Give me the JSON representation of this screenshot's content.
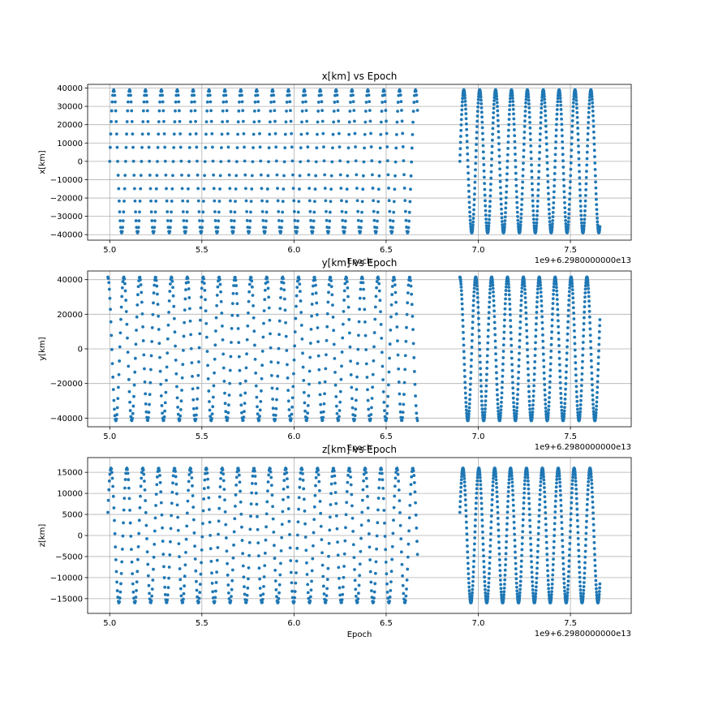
{
  "figure": {
    "background": "#ffffff",
    "marker_color": "#1f77b4",
    "grid": true
  },
  "chart_data": [
    {
      "type": "scatter",
      "title": "x[km] vs Epoch",
      "xlabel": "Epoch",
      "ylabel": "x[km]",
      "x_offset_label": "1e9+6.2980000000e13",
      "xlim": [
        4.88,
        7.83
      ],
      "ylim": [
        -43000,
        42000
      ],
      "x_ticks": [
        5.0,
        5.5,
        6.0,
        6.5,
        7.0,
        7.5
      ],
      "x_tick_labels": [
        "5.0",
        "5.5",
        "6.0",
        "6.5",
        "7.0",
        "7.5"
      ],
      "y_ticks": [
        -40000,
        -30000,
        -20000,
        -10000,
        0,
        10000,
        20000,
        30000,
        40000
      ],
      "y_tick_labels": [
        "−40000",
        "−30000",
        "−20000",
        "−10000",
        "0",
        "10000",
        "20000",
        "30000",
        "40000"
      ],
      "series": [
        {
          "segments": [
            [
              5.0,
              6.67
            ],
            [
              6.9,
              7.66
            ]
          ],
          "amplitude": 39000,
          "period": 0.0862,
          "phase": 0.0,
          "waveform": "sine",
          "samples_per_segment": 620
        }
      ]
    },
    {
      "type": "scatter",
      "title": "y[km] vs Epoch",
      "xlabel": "Epoch",
      "ylabel": "y[km]",
      "x_offset_label": "1e9+6.2980000000e13",
      "xlim": [
        4.88,
        7.83
      ],
      "ylim": [
        -45000,
        45000
      ],
      "x_ticks": [
        5.0,
        5.5,
        6.0,
        6.5,
        7.0,
        7.5
      ],
      "x_tick_labels": [
        "5.0",
        "5.5",
        "6.0",
        "6.5",
        "7.0",
        "7.5"
      ],
      "y_ticks": [
        -40000,
        -20000,
        0,
        20000,
        40000
      ],
      "y_tick_labels": [
        "−40000",
        "−20000",
        "0",
        "20000",
        "40000"
      ],
      "series": [
        {
          "segments": [
            [
              4.99,
              6.67
            ],
            [
              6.9,
              7.66
            ]
          ],
          "amplitude": 41500,
          "period": 0.0862,
          "phase": 1.5708,
          "waveform": "sine",
          "samples_per_segment": 620
        }
      ]
    },
    {
      "type": "scatter",
      "title": "z[km] vs Epoch",
      "xlabel": "Epoch",
      "ylabel": "z[km]",
      "x_offset_label": "1e9+6.2980000000e13",
      "xlim": [
        4.88,
        7.83
      ],
      "ylim": [
        -18500,
        18500
      ],
      "x_ticks": [
        5.0,
        5.5,
        6.0,
        6.5,
        7.0,
        7.5
      ],
      "x_tick_labels": [
        "5.0",
        "5.5",
        "6.0",
        "6.5",
        "7.0",
        "7.5"
      ],
      "y_ticks": [
        -15000,
        -10000,
        -5000,
        0,
        5000,
        10000,
        15000
      ],
      "y_tick_labels": [
        "−15000",
        "−10000",
        "−5000",
        "0",
        "5000",
        "10000",
        "15000"
      ],
      "series": [
        {
          "segments": [
            [
              4.99,
              6.67
            ],
            [
              6.9,
              7.66
            ]
          ],
          "amplitude": 16000,
          "period": 0.0862,
          "phase": 0.35,
          "waveform": "sine",
          "samples_per_segment": 620
        }
      ]
    }
  ]
}
